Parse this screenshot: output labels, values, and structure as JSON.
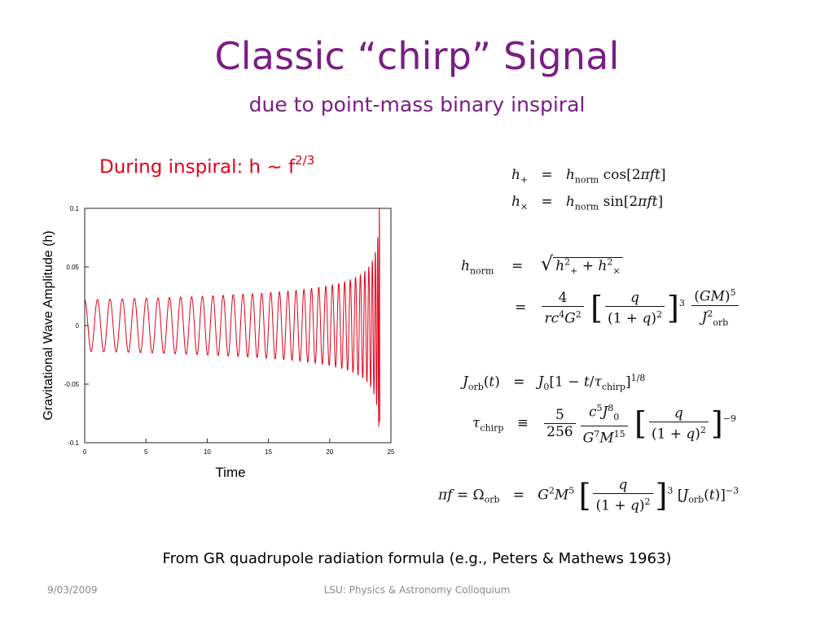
{
  "slide": {
    "title": "Classic “chirp” Signal",
    "subtitle": "due to point-mass binary inspiral",
    "inspiral_note": "During inspiral:  h ~ f",
    "inspiral_note_exp": "2/3",
    "footnote": "From GR quadrupole radiation formula (e.g., Peters & Mathews 1963)",
    "footer_date": "9/03/2009",
    "footer_center": "LSU:  Physics & Astronomy Colloquium"
  },
  "colors": {
    "title": "#7a1e84",
    "note": "#e2001a",
    "waveform": "#e2001a"
  },
  "chart_data": {
    "type": "line",
    "title": "",
    "xlabel": "Time",
    "ylabel": "Gravitational Wave Amplitude (h)",
    "xlim": [
      0,
      25
    ],
    "ylim": [
      -0.1,
      0.1
    ],
    "x_ticks": [
      "0",
      "5",
      "10",
      "15",
      "20",
      "25"
    ],
    "y_ticks": [
      "0.1",
      "0.05",
      "0",
      "-0.05",
      "-0.1"
    ],
    "grid": false,
    "series": [
      {
        "model": "h(t) = A0 (1 - t/tc)^(-1/4) cos(phase), chirp",
        "initial_amplitude": 0.022,
        "coalescence_time": 24.1,
        "initial_cycle_period": 1.05,
        "peak_amplitude": 0.1
      }
    ]
  }
}
